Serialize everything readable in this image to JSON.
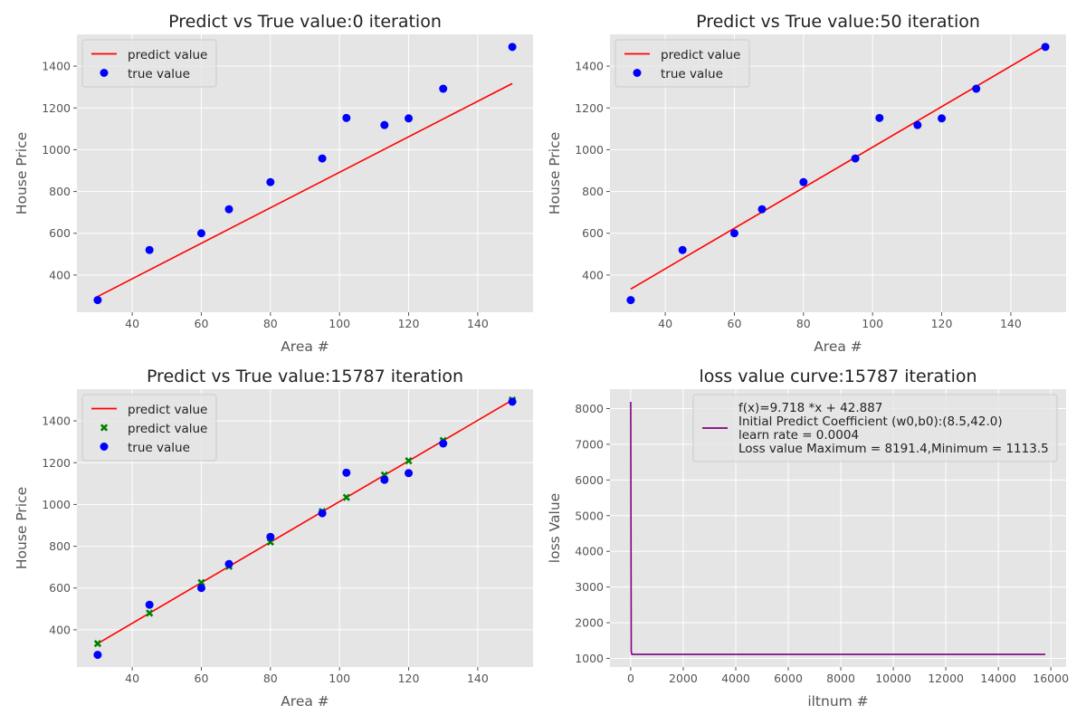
{
  "chart_data": [
    {
      "type": "line",
      "title": "Predict vs True value:0 iteration",
      "xlabel": "Area #",
      "ylabel": "House Price",
      "xlim": [
        24,
        156
      ],
      "ylim": [
        222,
        1552
      ],
      "xticks": [
        40,
        60,
        80,
        100,
        120,
        140
      ],
      "yticks": [
        400,
        600,
        800,
        1000,
        1200,
        1400
      ],
      "grid": true,
      "legend": "top-left",
      "series": [
        {
          "name": "predict value",
          "kind": "line",
          "color": "#ff0000",
          "x": [
            30,
            150
          ],
          "y": [
            297,
            1317
          ]
        },
        {
          "name": "true value",
          "kind": "scatter",
          "marker": "circle",
          "color": "#0000ff",
          "x": [
            30,
            45,
            60,
            68,
            80,
            95,
            102,
            113,
            120,
            130,
            150
          ],
          "y": [
            280,
            520,
            600,
            715,
            845,
            958,
            1152,
            1118,
            1150,
            1292,
            1492
          ]
        }
      ]
    },
    {
      "type": "line",
      "title": "Predict vs True value:50 iteration",
      "xlabel": "Area #",
      "ylabel": "House Price",
      "xlim": [
        24,
        156
      ],
      "ylim": [
        222,
        1552
      ],
      "xticks": [
        40,
        60,
        80,
        100,
        120,
        140
      ],
      "yticks": [
        400,
        600,
        800,
        1000,
        1200,
        1400
      ],
      "grid": true,
      "legend": "top-left",
      "series": [
        {
          "name": "predict value",
          "kind": "line",
          "color": "#ff0000",
          "x": [
            30,
            150
          ],
          "y": [
            333,
            1497
          ]
        },
        {
          "name": "true value",
          "kind": "scatter",
          "marker": "circle",
          "color": "#0000ff",
          "x": [
            30,
            45,
            60,
            68,
            80,
            95,
            102,
            113,
            120,
            130,
            150
          ],
          "y": [
            280,
            520,
            600,
            715,
            845,
            958,
            1152,
            1118,
            1150,
            1292,
            1492
          ]
        }
      ]
    },
    {
      "type": "line",
      "title": "Predict vs True value:15787 iteration",
      "xlabel": "Area #",
      "ylabel": "House Price",
      "xlim": [
        24,
        156
      ],
      "ylim": [
        222,
        1552
      ],
      "xticks": [
        40,
        60,
        80,
        100,
        120,
        140
      ],
      "yticks": [
        400,
        600,
        800,
        1000,
        1200,
        1400
      ],
      "grid": true,
      "legend": "top-left",
      "series": [
        {
          "name": "predict value",
          "kind": "line",
          "color": "#ff0000",
          "x": [
            30,
            150
          ],
          "y": [
            334,
            1500
          ]
        },
        {
          "name": "predict value",
          "kind": "scatter",
          "marker": "x",
          "color": "#008000",
          "x": [
            30,
            45,
            60,
            68,
            80,
            95,
            102,
            113,
            120,
            130,
            150
          ],
          "y": [
            334,
            480,
            626,
            704,
            820,
            966,
            1034,
            1141,
            1209,
            1306,
            1500
          ]
        },
        {
          "name": "true value",
          "kind": "scatter",
          "marker": "circle",
          "color": "#0000ff",
          "x": [
            30,
            45,
            60,
            68,
            80,
            95,
            102,
            113,
            120,
            130,
            150
          ],
          "y": [
            280,
            520,
            600,
            715,
            845,
            958,
            1152,
            1118,
            1150,
            1292,
            1492
          ]
        }
      ]
    },
    {
      "type": "line",
      "title": "loss value curve:15787 iteration",
      "xlabel": "iltnum #",
      "ylabel": "loss Value",
      "xlim": [
        -790,
        16580
      ],
      "ylim": [
        760,
        8545
      ],
      "xticks": [
        0,
        2000,
        4000,
        6000,
        8000,
        10000,
        12000,
        14000,
        16000
      ],
      "yticks": [
        1000,
        2000,
        3000,
        4000,
        5000,
        6000,
        7000,
        8000
      ],
      "grid": true,
      "legend": "top-right",
      "series": [
        {
          "name": "f(x)=9.718 *x + 42.887\nInitial Predict Coefficient (w0,b0):(8.5,42.0)\nlearn rate = 0.0004\nLoss value Maximum = 8191.4,Minimum = 1113.5",
          "kind": "line",
          "color": "#800080",
          "x": [
            0,
            20,
            40,
            60,
            80,
            100,
            150,
            200,
            300,
            500,
            1000,
            15787
          ],
          "y": [
            8191.4,
            1200,
            1116,
            1114,
            1113.6,
            1113.5,
            1113.5,
            1113.5,
            1113.5,
            1113.5,
            1113.5,
            1113.5
          ]
        }
      ]
    }
  ]
}
